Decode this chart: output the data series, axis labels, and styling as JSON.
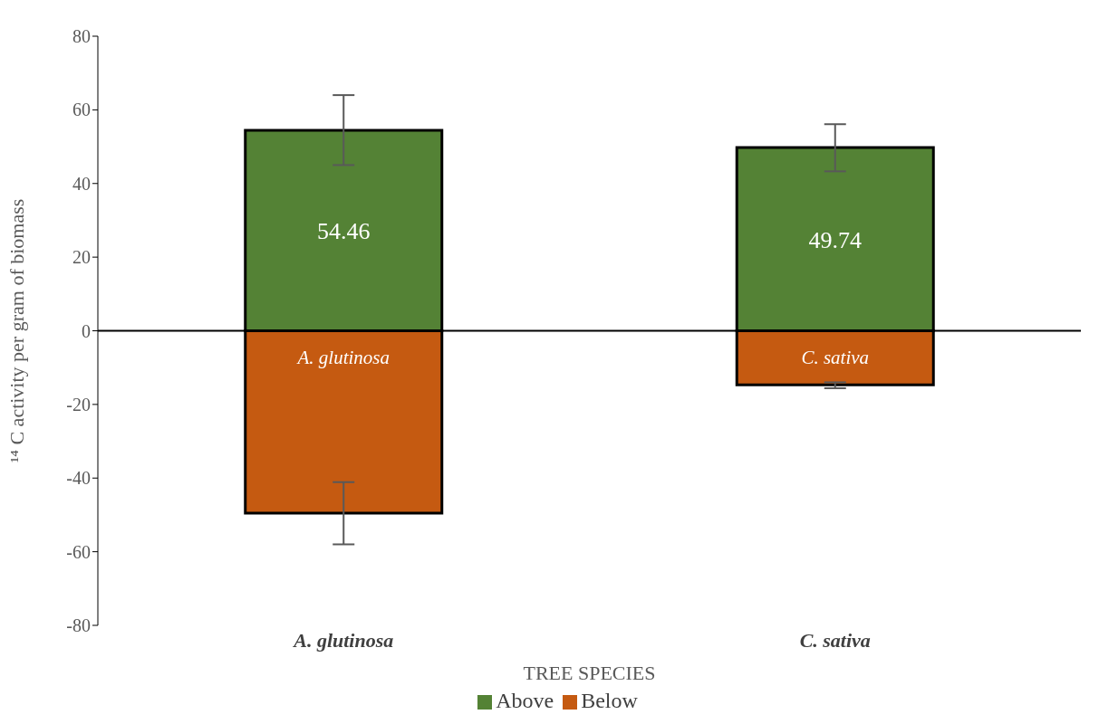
{
  "chart_data": {
    "type": "bar",
    "stacked": true,
    "xlabel": "TREE SPECIES",
    "ylabel": "¹⁴ C activity per gram of biomass",
    "categories": [
      "A. glutinosa",
      "C. sativa"
    ],
    "series": [
      {
        "name": "Above",
        "color": "#548235",
        "values": [
          54.46,
          49.74
        ],
        "errors": [
          [
            45,
            64
          ],
          [
            43.3,
            56.1
          ]
        ],
        "value_labels": [
          "54.46",
          "49.74"
        ]
      },
      {
        "name": "Below",
        "color": "#c55a11",
        "values": [
          -49.5,
          -14.7
        ],
        "errors": [
          [
            -58,
            -41.1
          ],
          [
            -15.6,
            -14
          ]
        ]
      }
    ],
    "annotations": [
      "A. glutinosa",
      "C. sativa"
    ],
    "ref_lines": [
      {
        "axis": "y",
        "value": 0,
        "color": "#000000"
      }
    ],
    "ylim": [
      -80,
      80
    ],
    "yticks": [
      -80,
      -60,
      -40,
      -20,
      0,
      20,
      40,
      60,
      80
    ],
    "grid": false,
    "legend": "bottom"
  }
}
